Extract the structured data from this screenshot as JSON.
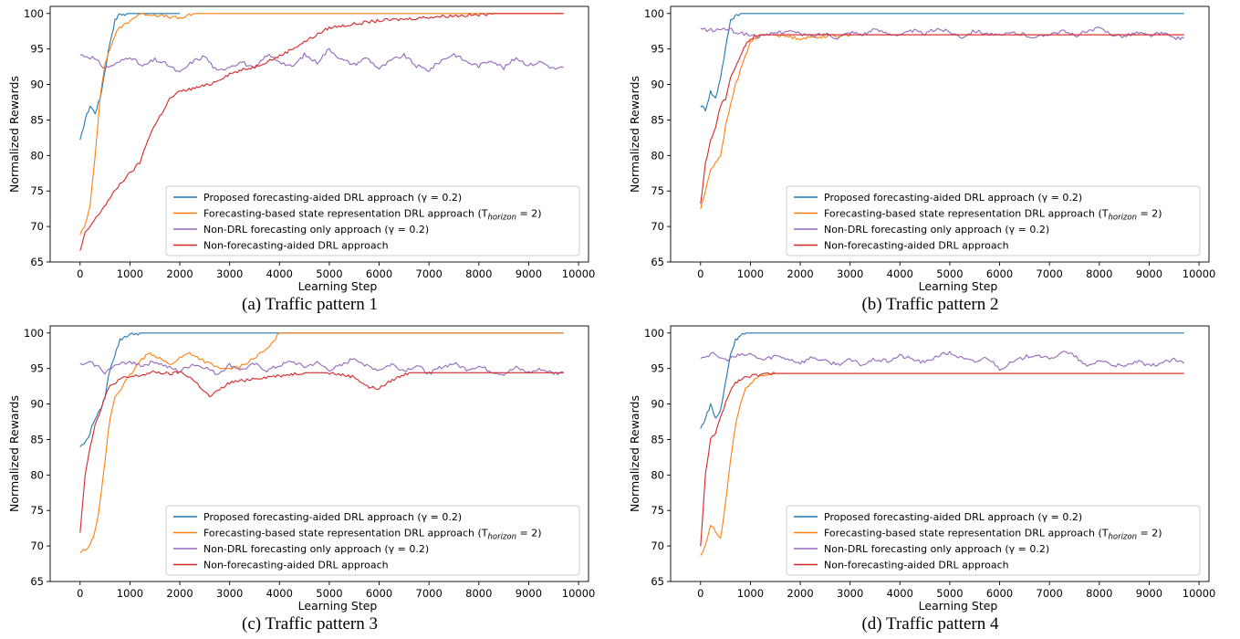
{
  "series_names": [
    "Proposed forecasting-aided DRL approach (γ = 0.2)",
    "Forecasting-based state representation DRL approach (T",
    "Non-DRL forecasting only approach (γ = 0.2)",
    "Non-forecasting-aided DRL approach"
  ],
  "series_suffix": {
    "sub": "horizon",
    "tail": " = 2)"
  },
  "colors": {
    "blue": "#1f77b4",
    "orange": "#ff7f0e",
    "purple": "#9467bd",
    "red": "#d62728"
  },
  "chart_data": [
    {
      "type": "line",
      "caption": "(a) Traffic pattern 1",
      "xlabel": "Learning Step",
      "ylabel": "Normalized Rewards",
      "xlim": [
        -600,
        10200
      ],
      "ylim": [
        65,
        101
      ],
      "xticks": [
        0,
        1000,
        2000,
        3000,
        4000,
        5000,
        6000,
        7000,
        8000,
        9000,
        10000
      ],
      "yticks": [
        65,
        70,
        75,
        80,
        85,
        90,
        95,
        100
      ],
      "legend": "lower-right",
      "grid": false,
      "series": [
        {
          "name": "Proposed forecasting-aided DRL approach (γ = 0.2)",
          "color": "#1f77b4",
          "x": [
            0,
            100,
            200,
            300,
            400,
            500,
            600,
            700,
            800,
            900,
            1000,
            1200,
            1400,
            1600,
            1800,
            2000
          ],
          "y": [
            82,
            85,
            87,
            86,
            88,
            92,
            96,
            99,
            100,
            99.8,
            100,
            100,
            100,
            100,
            100,
            100
          ]
        },
        {
          "name": "Forecasting-based state representation DRL approach (T_horizon = 2)",
          "color": "#ff7f0e",
          "x": [
            0,
            100,
            200,
            300,
            400,
            500,
            600,
            700,
            800,
            900,
            1000,
            1200,
            1500,
            1800,
            2000,
            2300,
            3000,
            5000,
            9700
          ],
          "y": [
            69,
            70,
            73,
            80,
            88,
            93,
            95,
            97,
            98,
            98.5,
            99,
            100,
            99.8,
            99.5,
            99.3,
            100,
            100,
            100,
            100
          ]
        },
        {
          "name": "Non-DRL forecasting only approach (γ = 0.2)",
          "color": "#9467bd",
          "x": [
            0,
            250,
            500,
            750,
            1000,
            1250,
            1500,
            1750,
            2000,
            2250,
            2500,
            2750,
            3000,
            3250,
            3500,
            3750,
            4000,
            4250,
            4500,
            4750,
            5000,
            5250,
            5500,
            5750,
            6000,
            6250,
            6500,
            6750,
            7000,
            7250,
            7500,
            7750,
            8000,
            8250,
            8500,
            8750,
            9000,
            9250,
            9500,
            9700
          ],
          "y": [
            94.2,
            93.8,
            92.3,
            93,
            94,
            92.5,
            93.5,
            92.8,
            91.6,
            93.2,
            94,
            91.8,
            92.6,
            93.2,
            92.1,
            94.2,
            93.3,
            92.4,
            94.2,
            93.1,
            95,
            93.5,
            92.8,
            93.8,
            92.2,
            93.4,
            94.1,
            92.6,
            92,
            93.4,
            94.3,
            93.2,
            92.6,
            93.5,
            92.3,
            93.8,
            92.7,
            93.2,
            92.2,
            92.4
          ]
        },
        {
          "name": "Non-forecasting-aided DRL approach",
          "color": "#d62728",
          "x": [
            0,
            100,
            200,
            400,
            600,
            800,
            1000,
            1200,
            1400,
            1600,
            1800,
            2000,
            2300,
            2600,
            3000,
            3500,
            4000,
            4500,
            5000,
            5500,
            6000,
            6500,
            7000,
            7500,
            8000,
            8300,
            9000,
            9700
          ],
          "y": [
            66.5,
            69,
            70,
            72,
            74,
            76,
            77.5,
            79,
            83,
            85.5,
            88,
            89,
            89.5,
            90,
            91.5,
            92.5,
            94,
            96,
            98,
            98.5,
            99,
            99.2,
            99.5,
            99.7,
            99.8,
            100,
            100,
            100
          ]
        }
      ]
    },
    {
      "type": "line",
      "caption": "(b) Traffic pattern 2",
      "xlabel": "Learning Step",
      "ylabel": "Normalized Rewards",
      "xlim": [
        -600,
        10200
      ],
      "ylim": [
        65,
        101
      ],
      "xticks": [
        0,
        1000,
        2000,
        3000,
        4000,
        5000,
        6000,
        7000,
        8000,
        9000,
        10000
      ],
      "yticks": [
        65,
        70,
        75,
        80,
        85,
        90,
        95,
        100
      ],
      "legend": "lower-right",
      "grid": false,
      "series": [
        {
          "name": "Proposed forecasting-aided DRL approach (γ = 0.2)",
          "color": "#1f77b4",
          "x": [
            0,
            100,
            200,
            300,
            400,
            500,
            600,
            700,
            800,
            1000,
            1500,
            9700
          ],
          "y": [
            87,
            86.5,
            89,
            88,
            91,
            95,
            99,
            99.8,
            100,
            100,
            100,
            100
          ]
        },
        {
          "name": "Forecasting-based state representation DRL approach (T_horizon = 2)",
          "color": "#ff7f0e",
          "x": [
            0,
            100,
            200,
            300,
            400,
            500,
            600,
            700,
            800,
            900,
            1000,
            1200,
            1500,
            2000,
            2500,
            3000,
            9700
          ],
          "y": [
            72.5,
            75,
            78,
            79,
            80,
            84,
            87,
            90,
            92,
            94,
            96,
            97,
            97,
            96.5,
            96.8,
            97,
            97
          ]
        },
        {
          "name": "Non-DRL forecasting only approach (γ = 0.2)",
          "color": "#9467bd",
          "x": [
            0,
            250,
            500,
            750,
            1000,
            1250,
            1500,
            1750,
            2000,
            2250,
            2500,
            2750,
            3000,
            3250,
            3500,
            3750,
            4000,
            4250,
            4500,
            4750,
            5000,
            5250,
            5500,
            5750,
            6000,
            6250,
            6500,
            6750,
            7000,
            7250,
            7500,
            7750,
            8000,
            8250,
            8500,
            8750,
            9000,
            9250,
            9500,
            9700
          ],
          "y": [
            97.8,
            97.6,
            97.9,
            97.3,
            97,
            96.7,
            97.3,
            97.6,
            97.1,
            96.8,
            97.2,
            96.6,
            97.4,
            97.1,
            97.7,
            97.3,
            96.9,
            97.6,
            97.1,
            97.9,
            97.4,
            96.7,
            97.6,
            97.2,
            96.8,
            97.3,
            97,
            96.6,
            97.2,
            97.5,
            96.9,
            97.4,
            97.9,
            97.1,
            96.8,
            97.3,
            96.9,
            97.2,
            96.6,
            96.5
          ]
        },
        {
          "name": "Non-forecasting-aided DRL approach",
          "color": "#d62728",
          "x": [
            0,
            100,
            200,
            300,
            400,
            500,
            600,
            700,
            800,
            900,
            1000,
            1200,
            1500,
            9700
          ],
          "y": [
            73,
            79,
            82,
            84,
            87,
            88,
            91,
            92.5,
            94,
            95.5,
            96.5,
            97,
            97,
            97
          ]
        }
      ]
    },
    {
      "type": "line",
      "caption": "(c) Traffic pattern 3",
      "xlabel": "Learning Step",
      "ylabel": "Normalized Rewards",
      "xlim": [
        -600,
        10200
      ],
      "ylim": [
        65,
        101
      ],
      "xticks": [
        0,
        1000,
        2000,
        3000,
        4000,
        5000,
        6000,
        7000,
        8000,
        9000,
        10000
      ],
      "yticks": [
        65,
        70,
        75,
        80,
        85,
        90,
        95,
        100
      ],
      "legend": "lower-right",
      "grid": false,
      "series": [
        {
          "name": "Proposed forecasting-aided DRL approach (γ = 0.2)",
          "color": "#1f77b4",
          "x": [
            0,
            100,
            200,
            300,
            400,
            500,
            600,
            700,
            800,
            900,
            1000,
            1200,
            1500,
            9700
          ],
          "y": [
            84,
            84.5,
            86,
            88,
            89,
            91,
            95,
            97,
            99,
            99.5,
            99.8,
            100,
            100,
            100
          ]
        },
        {
          "name": "Forecasting-based state representation DRL approach (T_horizon = 2)",
          "color": "#ff7f0e",
          "x": [
            0,
            100,
            200,
            300,
            400,
            500,
            600,
            700,
            800,
            900,
            1000,
            1200,
            1400,
            1600,
            1800,
            2000,
            2200,
            2500,
            2800,
            3000,
            3200,
            3500,
            3800,
            4000,
            5000,
            9700
          ],
          "y": [
            69,
            69.5,
            70,
            72,
            76,
            82,
            88,
            91,
            92,
            93,
            94,
            96,
            97.2,
            96.5,
            95.5,
            96.5,
            97.2,
            96,
            95,
            95,
            95.2,
            96.5,
            98,
            100,
            100,
            100
          ]
        },
        {
          "name": "Non-DRL forecasting only approach (γ = 0.2)",
          "color": "#9467bd",
          "x": [
            0,
            250,
            500,
            750,
            1000,
            1250,
            1500,
            1750,
            2000,
            2250,
            2500,
            2750,
            3000,
            3250,
            3500,
            3750,
            4000,
            4250,
            4500,
            4750,
            5000,
            5250,
            5500,
            5750,
            6000,
            6250,
            6500,
            6750,
            7000,
            7250,
            7500,
            7750,
            8000,
            8250,
            8500,
            8750,
            9000,
            9250,
            9500,
            9700
          ],
          "y": [
            95.5,
            95.8,
            94.5,
            95.5,
            96,
            95.4,
            96,
            95.2,
            94.6,
            95.6,
            95.2,
            94.2,
            95.5,
            94.8,
            95.6,
            94.7,
            95.4,
            96,
            95.2,
            95.8,
            94.8,
            95.4,
            96.5,
            95.4,
            94.8,
            95.6,
            94.7,
            95.4,
            94.3,
            95.2,
            95.7,
            94.9,
            95.3,
            94.6,
            94.2,
            95.1,
            94.4,
            94.9,
            94.3,
            94.4
          ]
        },
        {
          "name": "Non-forecasting-aided DRL approach",
          "color": "#d62728",
          "x": [
            0,
            100,
            200,
            300,
            400,
            500,
            600,
            800,
            1000,
            1200,
            1500,
            1800,
            2000,
            2200,
            2400,
            2600,
            2800,
            3000,
            3500,
            4000,
            4500,
            5000,
            5500,
            5800,
            6000,
            6300,
            6600,
            7000,
            8000,
            9700
          ],
          "y": [
            72,
            80,
            84,
            87,
            89,
            91,
            92.5,
            93.5,
            93.8,
            94,
            94.5,
            94.2,
            94.5,
            93.8,
            92.5,
            91,
            92,
            93,
            93.6,
            94,
            94.4,
            94.4,
            93.8,
            92.3,
            92.2,
            93.5,
            94.4,
            94.4,
            94.4,
            94.4
          ]
        }
      ]
    },
    {
      "type": "line",
      "caption": "(d) Traffic pattern 4",
      "xlabel": "Learning Step",
      "ylabel": "Normalized Rewards",
      "xlim": [
        -600,
        10200
      ],
      "ylim": [
        65,
        101
      ],
      "xticks": [
        0,
        1000,
        2000,
        3000,
        4000,
        5000,
        6000,
        7000,
        8000,
        9000,
        10000
      ],
      "yticks": [
        65,
        70,
        75,
        80,
        85,
        90,
        95,
        100
      ],
      "legend": "lower-right",
      "grid": false,
      "series": [
        {
          "name": "Proposed forecasting-aided DRL approach (γ = 0.2)",
          "color": "#1f77b4",
          "x": [
            0,
            100,
            200,
            300,
            400,
            500,
            600,
            700,
            800,
            1000,
            1500,
            9700
          ],
          "y": [
            86.5,
            88,
            90,
            88,
            89,
            93,
            97,
            99,
            99.8,
            100,
            100,
            100
          ]
        },
        {
          "name": "Forecasting-based state representation DRL approach (T_horizon = 2)",
          "color": "#ff7f0e",
          "x": [
            0,
            100,
            200,
            300,
            400,
            500,
            600,
            700,
            800,
            900,
            1000,
            1200,
            1500,
            2000,
            9700
          ],
          "y": [
            68.5,
            70,
            73,
            72,
            71,
            76,
            82,
            87,
            90,
            92,
            93,
            94,
            94.3,
            94.3,
            94.3
          ]
        },
        {
          "name": "Non-DRL forecasting only approach (γ = 0.2)",
          "color": "#9467bd",
          "x": [
            0,
            250,
            500,
            750,
            1000,
            1250,
            1500,
            1750,
            2000,
            2250,
            2500,
            2750,
            3000,
            3250,
            3500,
            3750,
            4000,
            4250,
            4500,
            4750,
            5000,
            5250,
            5500,
            5750,
            6000,
            6250,
            6500,
            6750,
            7000,
            7250,
            7500,
            7750,
            8000,
            8250,
            8500,
            8750,
            9000,
            9250,
            9500,
            9700
          ],
          "y": [
            96.6,
            97,
            96.2,
            96.8,
            97,
            96.2,
            96.8,
            96.4,
            95.8,
            96.6,
            96,
            95.6,
            96.2,
            95.5,
            96.3,
            96,
            96.8,
            96.3,
            95.8,
            96.8,
            97.2,
            96.4,
            95.9,
            96.6,
            95,
            95.8,
            96.6,
            97,
            96.2,
            97.4,
            96.8,
            95.2,
            96.2,
            95.6,
            95.2,
            96,
            95.3,
            95.8,
            96.2,
            95.7
          ]
        },
        {
          "name": "Non-forecasting-aided DRL approach",
          "color": "#d62728",
          "x": [
            0,
            100,
            200,
            300,
            400,
            500,
            600,
            700,
            800,
            1000,
            1500,
            9700
          ],
          "y": [
            70,
            80,
            85,
            86,
            88,
            90,
            92,
            93,
            93.5,
            94,
            94.3,
            94.3
          ]
        }
      ]
    }
  ]
}
